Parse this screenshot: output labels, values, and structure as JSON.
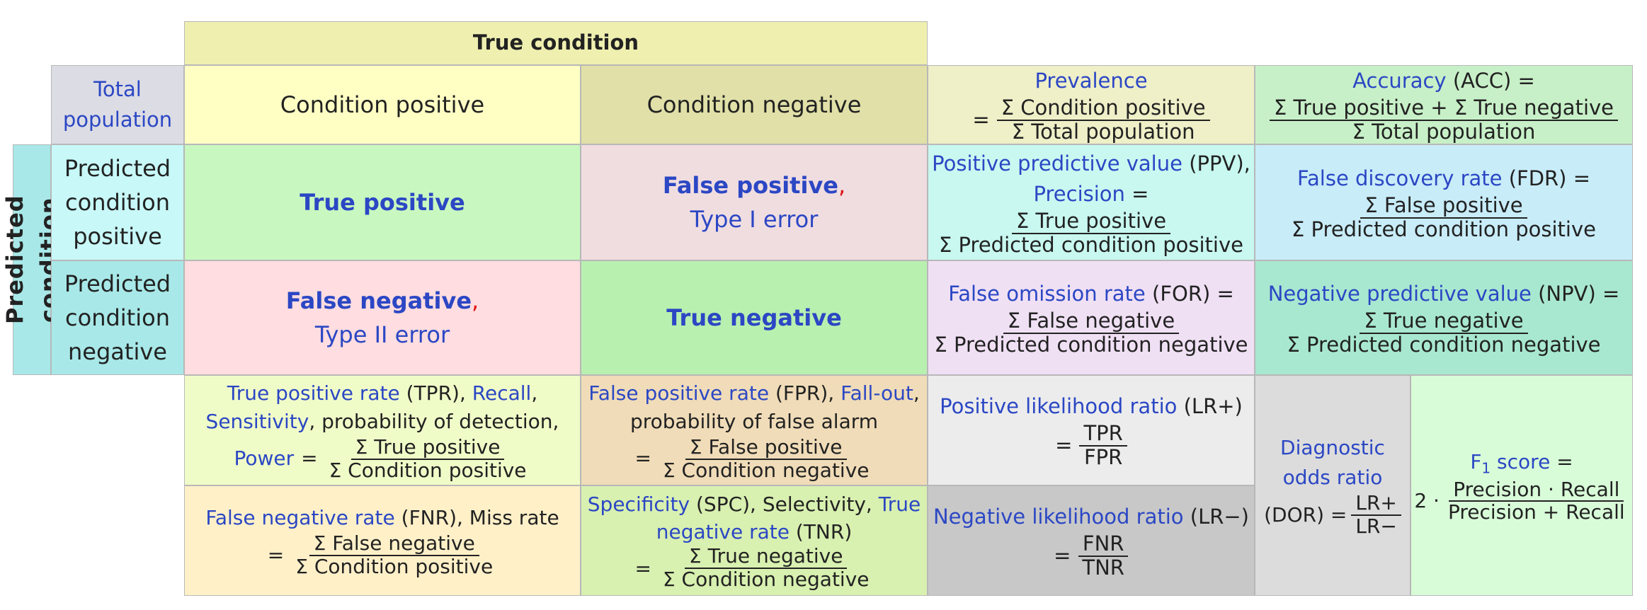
{
  "true_condition": "True condition",
  "predicted_condition": "Predicted condition",
  "total_population": "Total population",
  "condition_positive": "Condition positive",
  "condition_negative": "Condition negative",
  "pred_cond_positive": "Predicted condition positive",
  "pred_cond_negative": "Predicted condition negative",
  "tp": "True positive",
  "fp": "False positive",
  "fn": "False negative",
  "tn": "True negative",
  "comma": ",",
  "type1": "Type I error",
  "type2": "Type II error",
  "prevalence": {
    "label": "Prevalence",
    "eq": "=",
    "num": "Σ Condition positive",
    "den": "Σ Total population"
  },
  "accuracy": {
    "label": "Accuracy",
    "abbr": "(ACC) =",
    "num": "Σ True positive + Σ True negative",
    "den": "Σ Total population"
  },
  "ppv": {
    "label": "Positive predictive value",
    "abbr": "(PPV),",
    "label2": "Precision",
    "eq": "=",
    "num": "Σ True positive",
    "den": "Σ Predicted condition positive"
  },
  "fdr": {
    "label": "False discovery rate",
    "abbr": "(FDR) =",
    "num": "Σ False positive",
    "den": "Σ Predicted condition positive"
  },
  "for": {
    "label": "False omission rate",
    "abbr": "(FOR) =",
    "num": "Σ False negative",
    "den": "Σ Predicted condition negative"
  },
  "npv": {
    "label": "Negative predictive value",
    "abbr": "(NPV) =",
    "num": "Σ True negative",
    "den": "Σ Predicted condition negative"
  },
  "tpr": {
    "l1": "True positive rate",
    "a1": "(TPR),",
    "l2": "Recall",
    "c2": ",",
    "l3": "Sensitivity",
    "t3": ", probability of detection,",
    "l4": "Power",
    "eq": "=",
    "num": "Σ True positive",
    "den": "Σ Condition positive"
  },
  "fpr": {
    "l1": "False positive rate",
    "a1": "(FPR),",
    "l2": "Fall-out",
    "c2": ",",
    "t2": "probability of false alarm",
    "eq": "=",
    "num": "Σ False positive",
    "den": "Σ Condition negative"
  },
  "fnr": {
    "l1": "False negative rate",
    "a1": "(FNR), Miss rate",
    "eq": "=",
    "num": "Σ False negative",
    "den": "Σ Condition positive"
  },
  "spc": {
    "l1": "Specificity",
    "a1": "(SPC), Selectivity,",
    "l2": "True",
    "l3": "negative rate",
    "a3": "(TNR)",
    "eq": "=",
    "num": "Σ True negative",
    "den": "Σ Condition negative"
  },
  "lrp": {
    "label": "Positive likelihood ratio",
    "abbr": "(LR+)",
    "eq": "=",
    "num": "TPR",
    "den": "FPR"
  },
  "lrn": {
    "label": "Negative likelihood ratio",
    "abbr": "(LR−)",
    "eq": "=",
    "num": "FNR",
    "den": "TNR"
  },
  "dor": {
    "l1": "Diagnostic",
    "l2": "odds ratio",
    "abbr": "(DOR) =",
    "num": "LR+",
    "den": "LR−"
  },
  "f1": {
    "label": "F",
    "sub": "1",
    "label2": " score",
    "eq": "=",
    "prefix": "2 ·",
    "num": "Precision · Recall",
    "den": "Precision + Recall"
  },
  "colors": {
    "true_condition": "#efefb0",
    "total": "#dcdce4",
    "cond_pos": "#ffffc4",
    "cond_neg": "#e0e0a8",
    "prevalence": "#efefc8",
    "accuracy": "#c8f0c8",
    "pred_pos": "#c8f8f8",
    "pred_neg": "#a8e8e8",
    "tp": "#c8f8c0",
    "fp": "#f0dde0",
    "ppv": "#c8f8f0",
    "fdr": "#c8ecf8",
    "fn": "#ffdde0",
    "tn": "#b8f0b0",
    "for": "#f0e0f4",
    "npv": "#a8e8d0",
    "tpr": "#f0fcc8",
    "fpr": "#f0dcb8",
    "lrp": "#ececec",
    "dor": "#dcdcdc",
    "f1": "#d8fcd8",
    "fnr": "#fff0c8",
    "spc": "#d8f0b0",
    "lrn": "#c8c8c8"
  }
}
